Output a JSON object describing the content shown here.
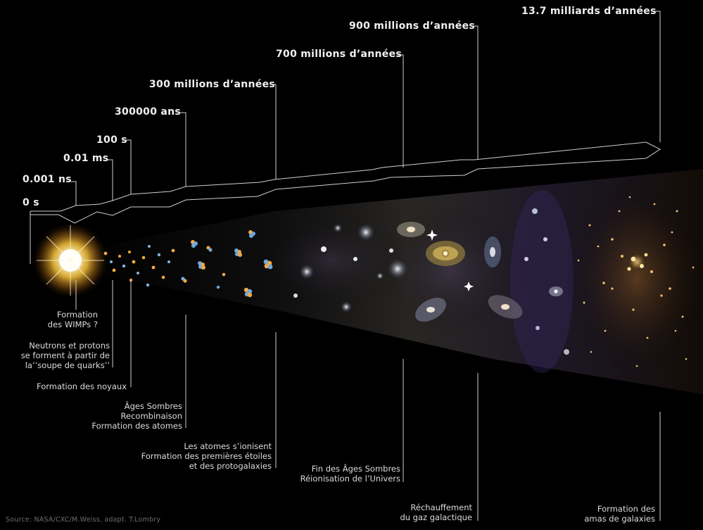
{
  "time_labels": [
    "0 s",
    "0.001 ns",
    "0.01 ms",
    "100 s",
    "300000 ans",
    "300 millions d’années",
    "700 millions d’années",
    "900 millions d’années",
    "13.7 milliards d’années"
  ],
  "events": [
    {
      "lines": [
        "Formation",
        "des WIMPs ?"
      ]
    },
    {
      "lines": [
        "Neutrons et protons",
        "se forment à partir de",
        "la’’soupe de quarks’’"
      ]
    },
    {
      "lines": [
        "Formation des noyaux"
      ]
    },
    {
      "lines": [
        "Âges Sombres",
        "Recombinaison",
        "Formation des atomes"
      ]
    },
    {
      "lines": [
        "Les atomes s’ionisent",
        "Formation des premières étoiles",
        "et des protogalaxies"
      ]
    },
    {
      "lines": [
        "Fin des Âges Sombres",
        "Réionisation de l’Univers"
      ]
    },
    {
      "lines": [
        "Réchauffement",
        "du gaz galactique"
      ]
    },
    {
      "lines": [
        "Formation des",
        "amas de galaxies"
      ]
    }
  ],
  "source": "Source: NASA/CXC/M.Weiss, adapt. T.Lombry",
  "colors": {
    "background": "#000000",
    "axis": "#cfcfcf",
    "label": "#f0f0f0",
    "bigbang": "#fff3b0",
    "galaxy": "#f2c572"
  }
}
